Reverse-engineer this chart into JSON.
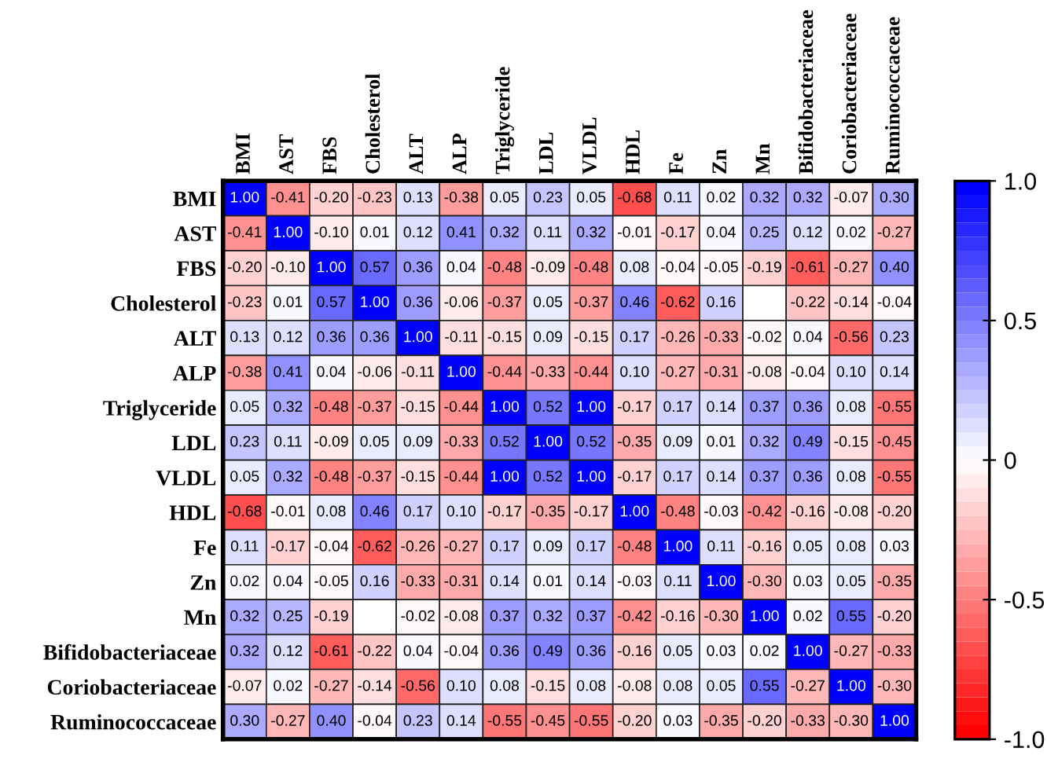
{
  "chart_data": {
    "type": "heatmap",
    "categories": [
      "BMI",
      "AST",
      "FBS",
      "Cholesterol",
      "ALT",
      "ALP",
      "Triglyceride",
      "LDL",
      "VLDL",
      "HDL",
      "Fe",
      "Zn",
      "Mn",
      "Bifidobacteriaceae",
      "Coriobacteriaceae",
      "Ruminococcaceae"
    ],
    "y_categories": [
      "BMI",
      "AST",
      "FBS",
      "Cholesterol",
      "ALT",
      "ALP",
      "Triglyceride",
      "LDL",
      "VLDL",
      "HDL",
      "Fe",
      "Zn",
      "Mn",
      "Bifidobacteriaceae",
      "Coriobacteriaceae",
      "Ruminococcaceae"
    ],
    "cells": [
      [
        1.0,
        -0.41,
        -0.2,
        -0.23,
        0.13,
        -0.38,
        0.05,
        0.23,
        0.05,
        -0.68,
        0.11,
        0.02,
        0.32,
        0.32,
        -0.07,
        0.3
      ],
      [
        -0.41,
        1.0,
        -0.1,
        0.01,
        0.12,
        0.41,
        0.32,
        0.11,
        0.32,
        -0.01,
        -0.17,
        0.04,
        0.25,
        0.12,
        0.02,
        -0.27
      ],
      [
        -0.2,
        -0.1,
        1.0,
        0.57,
        0.36,
        0.04,
        -0.48,
        -0.09,
        -0.48,
        0.08,
        -0.04,
        -0.05,
        -0.19,
        -0.61,
        -0.27,
        0.4
      ],
      [
        -0.23,
        0.01,
        0.57,
        1.0,
        0.36,
        -0.06,
        -0.37,
        0.05,
        -0.37,
        0.46,
        -0.62,
        0.16,
        null,
        -0.22,
        -0.14,
        -0.04
      ],
      [
        0.13,
        0.12,
        0.36,
        0.36,
        1.0,
        -0.11,
        -0.15,
        0.09,
        -0.15,
        0.17,
        -0.26,
        -0.33,
        -0.02,
        0.04,
        -0.56,
        0.23
      ],
      [
        -0.38,
        0.41,
        0.04,
        -0.06,
        -0.11,
        1.0,
        -0.44,
        -0.33,
        -0.44,
        0.1,
        -0.27,
        -0.31,
        -0.08,
        -0.04,
        0.1,
        0.14
      ],
      [
        0.05,
        0.32,
        -0.48,
        -0.37,
        -0.15,
        -0.44,
        1.0,
        0.52,
        1.0,
        -0.17,
        0.17,
        0.14,
        0.37,
        0.36,
        0.08,
        -0.55
      ],
      [
        0.23,
        0.11,
        -0.09,
        0.05,
        0.09,
        -0.33,
        0.52,
        1.0,
        0.52,
        -0.35,
        0.09,
        0.01,
        0.32,
        0.49,
        -0.15,
        -0.45
      ],
      [
        0.05,
        0.32,
        -0.48,
        -0.37,
        -0.15,
        -0.44,
        1.0,
        0.52,
        1.0,
        -0.17,
        0.17,
        0.14,
        0.37,
        0.36,
        0.08,
        -0.55
      ],
      [
        -0.68,
        -0.01,
        0.08,
        0.46,
        0.17,
        0.1,
        -0.17,
        -0.35,
        -0.17,
        1.0,
        -0.48,
        -0.03,
        -0.42,
        -0.16,
        -0.08,
        -0.2
      ],
      [
        0.11,
        -0.17,
        -0.04,
        -0.62,
        -0.26,
        -0.27,
        0.17,
        0.09,
        0.17,
        -0.48,
        1.0,
        0.11,
        -0.16,
        0.05,
        0.08,
        0.03
      ],
      [
        0.02,
        0.04,
        -0.05,
        0.16,
        -0.33,
        -0.31,
        0.14,
        0.01,
        0.14,
        -0.03,
        0.11,
        1.0,
        -0.3,
        0.03,
        0.05,
        -0.35
      ],
      [
        0.32,
        0.25,
        -0.19,
        null,
        -0.02,
        -0.08,
        0.37,
        0.32,
        0.37,
        -0.42,
        -0.16,
        -0.3,
        1.0,
        0.02,
        0.55,
        -0.2
      ],
      [
        0.32,
        0.12,
        -0.61,
        -0.22,
        0.04,
        -0.04,
        0.36,
        0.49,
        0.36,
        -0.16,
        0.05,
        0.03,
        0.02,
        1.0,
        -0.27,
        -0.33
      ],
      [
        -0.07,
        0.02,
        -0.27,
        -0.14,
        -0.56,
        0.1,
        0.08,
        -0.15,
        0.08,
        -0.08,
        0.08,
        0.05,
        0.55,
        -0.27,
        1.0,
        -0.3
      ],
      [
        0.3,
        -0.27,
        0.4,
        -0.04,
        0.23,
        0.14,
        -0.55,
        -0.45,
        -0.55,
        -0.2,
        0.03,
        -0.35,
        -0.2,
        -0.33,
        -0.3,
        1.0
      ]
    ],
    "cell_labels": [
      [
        "1.00",
        "-0.41",
        "-0.20",
        "-0.23",
        "0.13",
        "-0.38",
        "0.05",
        "0.23",
        "0.05",
        "-0.68",
        "0.11",
        "0.02",
        "0.32",
        "0.32",
        "-0.07",
        "0.30"
      ],
      [
        "-0.41",
        "1.00",
        "-0.10",
        "0.01",
        "0.12",
        "0.41",
        "0.32",
        "0.11",
        "0.32",
        "-0.01",
        "-0.17",
        "0.04",
        "0.25",
        "0.12",
        "0.02",
        "-0.27"
      ],
      [
        "-0.20",
        "-0.10",
        "1.00",
        "0.57",
        "0.36",
        "0.04",
        "-0.48",
        "-0.09",
        "-0.48",
        "0.08",
        "-0.04",
        "-0.05",
        "-0.19",
        "-0.61",
        "-0.27",
        "0.40"
      ],
      [
        "-0.23",
        "0.01",
        "0.57",
        "1.00",
        "0.36",
        "-0.06",
        "-0.37",
        "0.05",
        "-0.37",
        "0.46",
        "-0.62",
        "0.16",
        null,
        "-0.22",
        "-0.14",
        "-0.04"
      ],
      [
        "0.13",
        "0.12",
        "0.36",
        "0.36",
        "1.00",
        "-0.11",
        "-0.15",
        "0.09",
        "-0.15",
        "0.17",
        "-0.26",
        "-0.33",
        "-0.02",
        "0.04",
        "-0.56",
        "0.23"
      ],
      [
        "-0.38",
        "0.41",
        "0.04",
        "-0.06",
        "-0.11",
        "1.00",
        "-0.44",
        "-0.33",
        "-0.44",
        "0.10",
        "-0.27",
        "-0.31",
        "-0.08",
        "-0.04",
        "0.10",
        "0.14"
      ],
      [
        "0.05",
        "0.32",
        "-0.48",
        "-0.37",
        "-0.15",
        "-0.44",
        "1.00",
        "0.52",
        "1.00",
        "-0.17",
        "0.17",
        "0.14",
        "0.37",
        "0.36",
        "0.08",
        "-0.55"
      ],
      [
        "0.23",
        "0.11",
        "-0.09",
        "0.05",
        "0.09",
        "-0.33",
        "0.52",
        "1.00",
        "0.52",
        "-0.35",
        "0.09",
        "0.01",
        "0.32",
        "0.49",
        "-0.15",
        "-0.45"
      ],
      [
        "0.05",
        "0.32",
        "-0.48",
        "-0.37",
        "-0.15",
        "-0.44",
        "1.00",
        "0.52",
        "1.00",
        "-0.17",
        "0.17",
        "0.14",
        "0.37",
        "0.36",
        "0.08",
        "-0.55"
      ],
      [
        "-0.68",
        "-0.01",
        "0.08",
        "0.46",
        "0.17",
        "0.10",
        "-0.17",
        "-0.35",
        "-0.17",
        "1.00",
        "-0.48",
        "-0.03",
        "-0.42",
        "-0.16",
        "-0.08",
        "-0.20"
      ],
      [
        "0.11",
        "-0.17",
        "-0.04",
        "-0.62",
        "-0.26",
        "-0.27",
        "0.17",
        "0.09",
        "0.17",
        "-0.48",
        "1.00",
        "0.11",
        "-0.16",
        "0.05",
        "0.08",
        "0.03"
      ],
      [
        "0.02",
        "0.04",
        "-0.05",
        "0.16",
        "-0.33",
        "-0.31",
        "0.14",
        "0.01",
        "0.14",
        "-0.03",
        "0.11",
        "1.00",
        "-0.30",
        "0.03",
        "0.05",
        "-0.35"
      ],
      [
        "0.32",
        "0.25",
        "-0.19",
        null,
        "-0.02",
        "-0.08",
        "0.37",
        "0.32",
        "0.37",
        "-0.42",
        "-0.16",
        "-0.30",
        "1.00",
        "0.02",
        "0.55",
        "-0.20"
      ],
      [
        "0.32",
        "0.12",
        "-0.61",
        "-0.22",
        "0.04",
        "-0.04",
        "0.36",
        "0.49",
        "0.36",
        "-0.16",
        "0.05",
        "0.03",
        "0.02",
        "1.00",
        "-0.27",
        "-0.33"
      ],
      [
        "-0.07",
        "0.02",
        "-0.27",
        "-0.14",
        "-0.56",
        "0.10",
        "0.08",
        "-0.15",
        "0.08",
        "-0.08",
        "0.08",
        "0.05",
        "0.55",
        "-0.27",
        "1.00",
        "-0.30"
      ],
      [
        "0.30",
        "-0.27",
        "0.40",
        "-0.04",
        "0.23",
        "0.14",
        "-0.55",
        "-0.45",
        "-0.55",
        "-0.20",
        "0.03",
        "-0.35",
        "-0.20",
        "-0.33",
        "-0.30",
        "1.00"
      ]
    ],
    "clim": [
      -1.0,
      1.0
    ],
    "cticks": [
      {
        "value": 1.0,
        "label": "1.0"
      },
      {
        "value": 0.5,
        "label": "0.5"
      },
      0,
      {
        "value": -0.5,
        "label": "-0.5"
      },
      {
        "value": -1.0,
        "label": "-1.0"
      }
    ]
  }
}
